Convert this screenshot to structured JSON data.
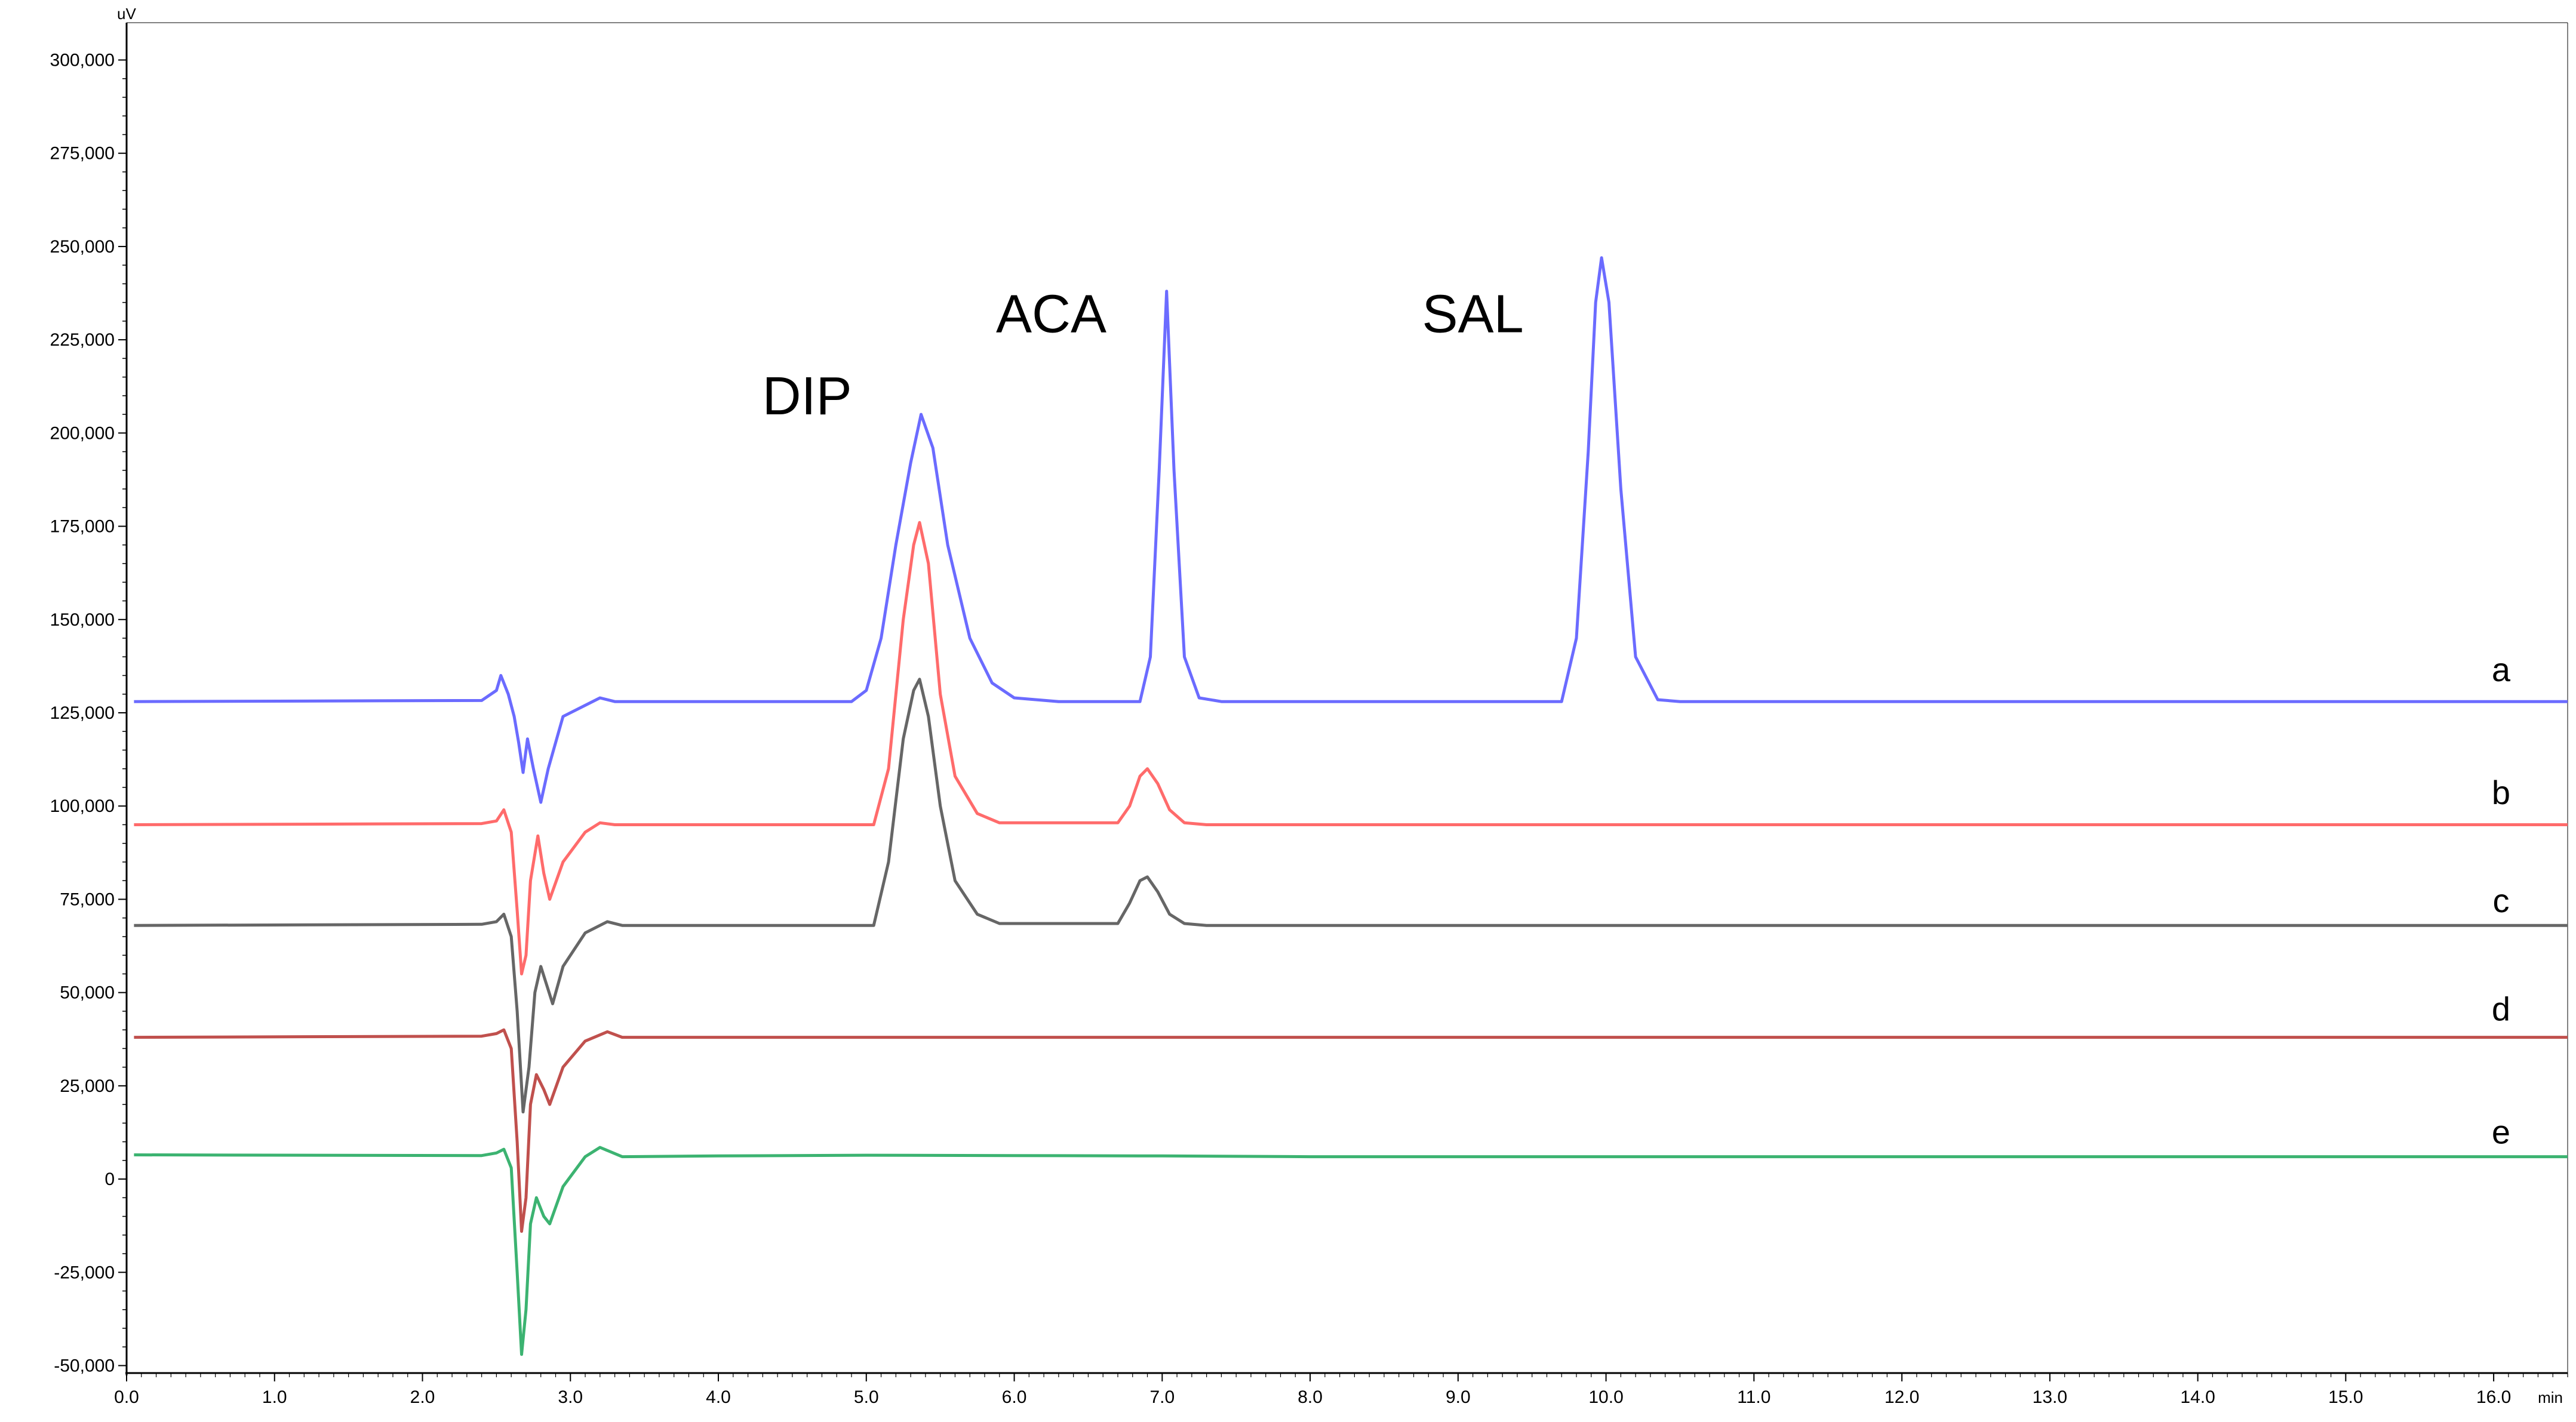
{
  "chart_data": {
    "type": "line",
    "title": "",
    "x_unit": "min",
    "y_unit": "uV",
    "xlim": [
      0.0,
      16.5
    ],
    "ylim": [
      -52000,
      310000
    ],
    "grid": false,
    "x_ticks": [
      "0.0",
      "1.0",
      "2.0",
      "3.0",
      "4.0",
      "5.0",
      "6.0",
      "7.0",
      "8.0",
      "9.0",
      "10.0",
      "11.0",
      "12.0",
      "13.0",
      "14.0",
      "15.0",
      "16.0"
    ],
    "x_tick_values": [
      0,
      1,
      2,
      3,
      4,
      5,
      6,
      7,
      8,
      9,
      10,
      11,
      12,
      13,
      14,
      15,
      16
    ],
    "y_ticks": [
      "-50,000",
      "-25,000",
      "0",
      "25,000",
      "50,000",
      "75,000",
      "100,000",
      "125,000",
      "150,000",
      "175,000",
      "200,000",
      "225,000",
      "250,000",
      "275,000",
      "300,000"
    ],
    "y_tick_values": [
      -50000,
      -25000,
      0,
      25000,
      50000,
      75000,
      100000,
      125000,
      150000,
      175000,
      200000,
      225000,
      250000,
      275000,
      300000
    ],
    "peak_labels": [
      {
        "text": "DIP",
        "x": 4.6,
        "y": 205000
      },
      {
        "text": "ACA",
        "x": 6.25,
        "y": 227000
      },
      {
        "text": "SAL",
        "x": 9.1,
        "y": 227000
      }
    ],
    "series": [
      {
        "name": "a",
        "color": "#6b6bff",
        "baseline": 128000,
        "end_x": 16.5,
        "label_y": 138000,
        "points": [
          [
            0.05,
            128000
          ],
          [
            2.4,
            128300
          ],
          [
            2.5,
            131000
          ],
          [
            2.53,
            135000
          ],
          [
            2.58,
            130000
          ],
          [
            2.62,
            124000
          ],
          [
            2.65,
            117000
          ],
          [
            2.68,
            109000
          ],
          [
            2.71,
            118000
          ],
          [
            2.75,
            110000
          ],
          [
            2.8,
            101000
          ],
          [
            2.85,
            110000
          ],
          [
            2.95,
            124000
          ],
          [
            3.1,
            127000
          ],
          [
            3.2,
            129000
          ],
          [
            3.3,
            128000
          ],
          [
            4.9,
            128000
          ],
          [
            5.0,
            131000
          ],
          [
            5.1,
            145000
          ],
          [
            5.2,
            170000
          ],
          [
            5.3,
            192000
          ],
          [
            5.37,
            205000
          ],
          [
            5.45,
            196000
          ],
          [
            5.55,
            170000
          ],
          [
            5.7,
            145000
          ],
          [
            5.85,
            133000
          ],
          [
            6.0,
            129000
          ],
          [
            6.3,
            128000
          ],
          [
            6.85,
            128000
          ],
          [
            6.92,
            140000
          ],
          [
            6.98,
            190000
          ],
          [
            7.03,
            238000
          ],
          [
            7.08,
            190000
          ],
          [
            7.15,
            140000
          ],
          [
            7.25,
            129000
          ],
          [
            7.4,
            128000
          ],
          [
            9.7,
            128000
          ],
          [
            9.8,
            145000
          ],
          [
            9.88,
            195000
          ],
          [
            9.93,
            235000
          ],
          [
            9.97,
            247000
          ],
          [
            10.02,
            235000
          ],
          [
            10.1,
            185000
          ],
          [
            10.2,
            140000
          ],
          [
            10.35,
            128500
          ],
          [
            10.5,
            128000
          ],
          [
            16.5,
            128000
          ]
        ]
      },
      {
        "name": "b",
        "color": "#ff6b6b",
        "baseline": 95000,
        "end_x": 16.5,
        "label_y": 105000,
        "points": [
          [
            0.05,
            95000
          ],
          [
            2.4,
            95300
          ],
          [
            2.5,
            96000
          ],
          [
            2.55,
            99000
          ],
          [
            2.6,
            93000
          ],
          [
            2.64,
            72000
          ],
          [
            2.67,
            55000
          ],
          [
            2.7,
            60000
          ],
          [
            2.73,
            80000
          ],
          [
            2.78,
            92000
          ],
          [
            2.82,
            82000
          ],
          [
            2.86,
            75000
          ],
          [
            2.95,
            85000
          ],
          [
            3.1,
            93000
          ],
          [
            3.2,
            95500
          ],
          [
            3.3,
            95000
          ],
          [
            5.05,
            95000
          ],
          [
            5.15,
            110000
          ],
          [
            5.25,
            150000
          ],
          [
            5.32,
            170000
          ],
          [
            5.36,
            176000
          ],
          [
            5.42,
            165000
          ],
          [
            5.5,
            130000
          ],
          [
            5.6,
            108000
          ],
          [
            5.75,
            98000
          ],
          [
            5.9,
            95500
          ],
          [
            6.7,
            95500
          ],
          [
            6.78,
            100000
          ],
          [
            6.85,
            108000
          ],
          [
            6.9,
            110000
          ],
          [
            6.97,
            106000
          ],
          [
            7.05,
            99000
          ],
          [
            7.15,
            95500
          ],
          [
            7.3,
            95000
          ],
          [
            16.5,
            95000
          ]
        ]
      },
      {
        "name": "c",
        "color": "#666666",
        "baseline": 68000,
        "end_x": 16.5,
        "label_y": 76000,
        "points": [
          [
            0.05,
            68000
          ],
          [
            2.4,
            68300
          ],
          [
            2.5,
            69000
          ],
          [
            2.55,
            71000
          ],
          [
            2.6,
            65000
          ],
          [
            2.64,
            45000
          ],
          [
            2.68,
            18000
          ],
          [
            2.72,
            30000
          ],
          [
            2.76,
            50000
          ],
          [
            2.8,
            57000
          ],
          [
            2.84,
            52000
          ],
          [
            2.88,
            47000
          ],
          [
            2.95,
            57000
          ],
          [
            3.1,
            66000
          ],
          [
            3.25,
            69000
          ],
          [
            3.35,
            68000
          ],
          [
            5.05,
            68000
          ],
          [
            5.15,
            85000
          ],
          [
            5.25,
            118000
          ],
          [
            5.32,
            131000
          ],
          [
            5.36,
            134000
          ],
          [
            5.42,
            124000
          ],
          [
            5.5,
            100000
          ],
          [
            5.6,
            80000
          ],
          [
            5.75,
            71000
          ],
          [
            5.9,
            68500
          ],
          [
            6.7,
            68500
          ],
          [
            6.78,
            74000
          ],
          [
            6.85,
            80000
          ],
          [
            6.9,
            81000
          ],
          [
            6.97,
            77000
          ],
          [
            7.05,
            71000
          ],
          [
            7.15,
            68500
          ],
          [
            7.3,
            68000
          ],
          [
            16.5,
            68000
          ]
        ]
      },
      {
        "name": "d",
        "color": "#c0504d",
        "baseline": 38000,
        "end_x": 16.5,
        "label_y": 47000,
        "points": [
          [
            0.05,
            38000
          ],
          [
            2.4,
            38300
          ],
          [
            2.5,
            39000
          ],
          [
            2.55,
            40000
          ],
          [
            2.6,
            35000
          ],
          [
            2.64,
            10000
          ],
          [
            2.67,
            -14000
          ],
          [
            2.7,
            -5000
          ],
          [
            2.73,
            20000
          ],
          [
            2.77,
            28000
          ],
          [
            2.82,
            24000
          ],
          [
            2.86,
            20000
          ],
          [
            2.95,
            30000
          ],
          [
            3.1,
            37000
          ],
          [
            3.25,
            39500
          ],
          [
            3.35,
            38000
          ],
          [
            16.5,
            38000
          ]
        ]
      },
      {
        "name": "e",
        "color": "#3cb371",
        "baseline": 6000,
        "end_x": 16.5,
        "label_y": 14000,
        "points": [
          [
            0.05,
            6500
          ],
          [
            2.4,
            6300
          ],
          [
            2.5,
            7000
          ],
          [
            2.55,
            8000
          ],
          [
            2.6,
            3000
          ],
          [
            2.64,
            -25000
          ],
          [
            2.67,
            -47000
          ],
          [
            2.7,
            -35000
          ],
          [
            2.73,
            -12000
          ],
          [
            2.77,
            -5000
          ],
          [
            2.82,
            -10000
          ],
          [
            2.86,
            -12000
          ],
          [
            2.95,
            -2000
          ],
          [
            3.1,
            6000
          ],
          [
            3.2,
            8500
          ],
          [
            3.35,
            6000
          ],
          [
            4.0,
            6200
          ],
          [
            5.0,
            6400
          ],
          [
            6.0,
            6300
          ],
          [
            7.0,
            6200
          ],
          [
            8.0,
            6000
          ],
          [
            10.0,
            6000
          ],
          [
            15.6,
            6000
          ],
          [
            16.5,
            6000
          ]
        ]
      }
    ]
  }
}
